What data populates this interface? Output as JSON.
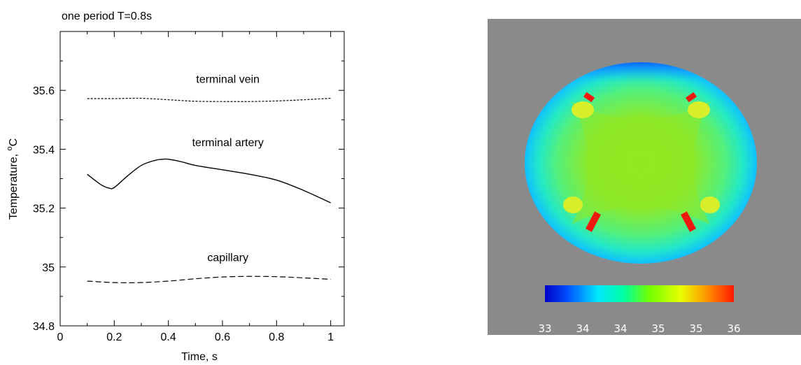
{
  "chart_data": [
    {
      "type": "line",
      "title": "one period T=0.8s",
      "xlabel": "Time, s",
      "ylabel_main": "Temperature, ",
      "ylabel_sup": "o",
      "ylabel_unit": "C",
      "xlim": [
        0,
        1.05
      ],
      "ylim": [
        34.8,
        35.8
      ],
      "x_ticks": [
        0,
        0.2,
        0.4,
        0.6,
        0.8,
        1
      ],
      "x_tick_labels": [
        "0",
        "0.2",
        "0.4",
        "0.6",
        "0.8",
        "1"
      ],
      "y_ticks": [
        34.8,
        35.0,
        35.2,
        35.4,
        35.6
      ],
      "y_tick_labels": [
        "34.8",
        "35",
        "35.2",
        "35.4",
        "35.6"
      ],
      "grid": false,
      "series": [
        {
          "name": "terminal vein",
          "style": "dotted",
          "x": [
            0.1,
            0.2,
            0.3,
            0.4,
            0.5,
            0.6,
            0.7,
            0.8,
            0.9,
            1.0
          ],
          "y": [
            35.572,
            35.572,
            35.573,
            35.568,
            35.563,
            35.562,
            35.562,
            35.564,
            35.568,
            35.573
          ]
        },
        {
          "name": "terminal artery",
          "style": "solid",
          "x": [
            0.1,
            0.15,
            0.18,
            0.2,
            0.25,
            0.3,
            0.35,
            0.38,
            0.4,
            0.45,
            0.5,
            0.6,
            0.7,
            0.8,
            0.9,
            1.0
          ],
          "y": [
            35.315,
            35.28,
            35.268,
            35.27,
            35.31,
            35.345,
            35.362,
            35.366,
            35.366,
            35.357,
            35.345,
            35.33,
            35.315,
            35.295,
            35.26,
            35.218
          ]
        },
        {
          "name": "capillary",
          "style": "dashed",
          "x": [
            0.1,
            0.2,
            0.3,
            0.4,
            0.5,
            0.6,
            0.7,
            0.8,
            0.9,
            1.0
          ],
          "y": [
            34.952,
            34.947,
            34.947,
            34.952,
            34.96,
            34.966,
            34.968,
            34.967,
            34.963,
            34.958
          ]
        }
      ],
      "annotations": [
        {
          "text": "terminal vein",
          "x": 0.62,
          "y": 35.625
        },
        {
          "text": "terminal artery",
          "x": 0.62,
          "y": 35.41
        },
        {
          "text": "capillary",
          "x": 0.62,
          "y": 35.02
        }
      ]
    },
    {
      "type": "heatmap",
      "colormap": "jet",
      "colorbar": {
        "min": 33,
        "max": 36,
        "tick_labels": [
          "33",
          "34",
          "34",
          "35",
          "35",
          "36"
        ]
      },
      "background_color": "#8a8a8a"
    }
  ]
}
